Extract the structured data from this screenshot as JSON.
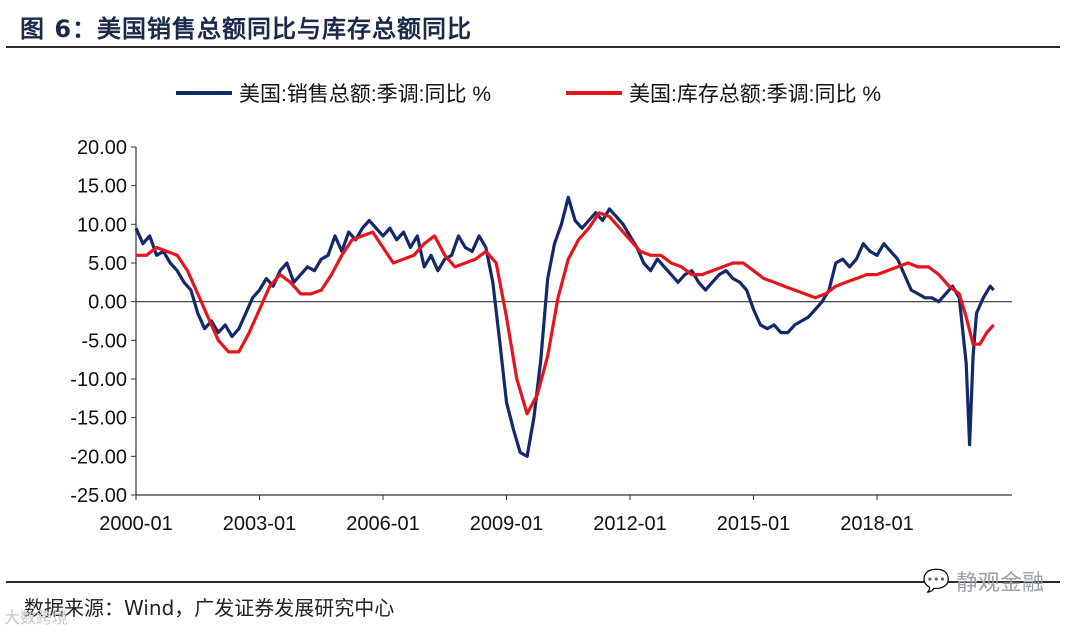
{
  "header": {
    "title": "图 6：美国销售总额同比与库存总额同比"
  },
  "footer": {
    "source": "数据来源：Wind，广发证券发展研究中心",
    "watermark": "静观金融",
    "watermark_left": "大数跨境"
  },
  "chart_data": {
    "type": "line",
    "title": "",
    "xlabel": "",
    "ylabel": "",
    "ylim": [
      -25,
      20
    ],
    "yticks": [
      "20.00",
      "15.00",
      "10.00",
      "5.00",
      "0.00",
      "-5.00",
      "-10.00",
      "-15.00",
      "-20.00",
      "-25.00"
    ],
    "ytick_values": [
      20,
      15,
      10,
      5,
      0,
      -5,
      -10,
      -15,
      -20,
      -25
    ],
    "xlim": [
      "2000-01",
      "2020-06"
    ],
    "xticks": [
      "2000-01",
      "2003-01",
      "2006-01",
      "2009-01",
      "2012-01",
      "2015-01",
      "2018-01"
    ],
    "grid": false,
    "legend": "top",
    "colors": {
      "sales": "#13296b",
      "inventory": "#e8141c"
    },
    "series": [
      {
        "name": "美国:销售总额:季调:同比 %",
        "color": "#13296b",
        "points": [
          [
            "2000-01",
            9.5
          ],
          [
            "2000-03",
            7.5
          ],
          [
            "2000-05",
            8.5
          ],
          [
            "2000-07",
            6.0
          ],
          [
            "2000-09",
            6.5
          ],
          [
            "2000-11",
            5.0
          ],
          [
            "2001-01",
            4.0
          ],
          [
            "2001-03",
            2.5
          ],
          [
            "2001-05",
            1.5
          ],
          [
            "2001-07",
            -1.5
          ],
          [
            "2001-09",
            -3.5
          ],
          [
            "2001-11",
            -2.5
          ],
          [
            "2002-01",
            -4.0
          ],
          [
            "2002-03",
            -3.0
          ],
          [
            "2002-05",
            -4.5
          ],
          [
            "2002-07",
            -3.5
          ],
          [
            "2002-09",
            -1.5
          ],
          [
            "2002-11",
            0.5
          ],
          [
            "2003-01",
            1.5
          ],
          [
            "2003-03",
            3.0
          ],
          [
            "2003-05",
            2.0
          ],
          [
            "2003-07",
            4.0
          ],
          [
            "2003-09",
            5.0
          ],
          [
            "2003-11",
            2.5
          ],
          [
            "2004-01",
            3.5
          ],
          [
            "2004-03",
            4.5
          ],
          [
            "2004-05",
            4.0
          ],
          [
            "2004-07",
            5.5
          ],
          [
            "2004-09",
            6.0
          ],
          [
            "2004-11",
            8.5
          ],
          [
            "2005-01",
            6.5
          ],
          [
            "2005-03",
            9.0
          ],
          [
            "2005-05",
            8.0
          ],
          [
            "2005-07",
            9.5
          ],
          [
            "2005-09",
            10.5
          ],
          [
            "2005-11",
            9.5
          ],
          [
            "2006-01",
            8.5
          ],
          [
            "2006-03",
            9.5
          ],
          [
            "2006-05",
            8.0
          ],
          [
            "2006-07",
            9.0
          ],
          [
            "2006-09",
            7.0
          ],
          [
            "2006-11",
            8.5
          ],
          [
            "2007-01",
            4.5
          ],
          [
            "2007-03",
            6.0
          ],
          [
            "2007-05",
            4.0
          ],
          [
            "2007-07",
            5.5
          ],
          [
            "2007-09",
            6.0
          ],
          [
            "2007-11",
            8.5
          ],
          [
            "2008-01",
            7.0
          ],
          [
            "2008-03",
            6.5
          ],
          [
            "2008-05",
            8.5
          ],
          [
            "2008-07",
            7.0
          ],
          [
            "2008-09",
            2.5
          ],
          [
            "2008-11",
            -5.0
          ],
          [
            "2009-01",
            -13.0
          ],
          [
            "2009-03",
            -16.5
          ],
          [
            "2009-05",
            -19.5
          ],
          [
            "2009-07",
            -20.0
          ],
          [
            "2009-09",
            -15.0
          ],
          [
            "2009-11",
            -7.5
          ],
          [
            "2010-01",
            3.0
          ],
          [
            "2010-03",
            7.5
          ],
          [
            "2010-05",
            10.0
          ],
          [
            "2010-07",
            13.5
          ],
          [
            "2010-09",
            10.5
          ],
          [
            "2010-11",
            9.5
          ],
          [
            "2011-01",
            10.5
          ],
          [
            "2011-03",
            11.5
          ],
          [
            "2011-05",
            10.5
          ],
          [
            "2011-07",
            12.0
          ],
          [
            "2011-09",
            11.0
          ],
          [
            "2011-11",
            10.0
          ],
          [
            "2012-01",
            8.5
          ],
          [
            "2012-03",
            7.0
          ],
          [
            "2012-05",
            5.0
          ],
          [
            "2012-07",
            4.0
          ],
          [
            "2012-09",
            5.5
          ],
          [
            "2012-11",
            4.5
          ],
          [
            "2013-01",
            3.5
          ],
          [
            "2013-03",
            2.5
          ],
          [
            "2013-05",
            3.5
          ],
          [
            "2013-07",
            4.0
          ],
          [
            "2013-09",
            2.5
          ],
          [
            "2013-11",
            1.5
          ],
          [
            "2014-01",
            2.5
          ],
          [
            "2014-03",
            3.5
          ],
          [
            "2014-05",
            4.0
          ],
          [
            "2014-07",
            3.0
          ],
          [
            "2014-09",
            2.5
          ],
          [
            "2014-11",
            1.5
          ],
          [
            "2015-01",
            -1.0
          ],
          [
            "2015-03",
            -3.0
          ],
          [
            "2015-05",
            -3.5
          ],
          [
            "2015-07",
            -3.0
          ],
          [
            "2015-09",
            -4.0
          ],
          [
            "2015-11",
            -4.0
          ],
          [
            "2016-01",
            -3.0
          ],
          [
            "2016-03",
            -2.5
          ],
          [
            "2016-05",
            -2.0
          ],
          [
            "2016-07",
            -1.0
          ],
          [
            "2016-09",
            0.0
          ],
          [
            "2016-11",
            1.5
          ],
          [
            "2017-01",
            5.0
          ],
          [
            "2017-03",
            5.5
          ],
          [
            "2017-05",
            4.5
          ],
          [
            "2017-07",
            5.5
          ],
          [
            "2017-09",
            7.5
          ],
          [
            "2017-11",
            6.5
          ],
          [
            "2018-01",
            6.0
          ],
          [
            "2018-03",
            7.5
          ],
          [
            "2018-05",
            6.5
          ],
          [
            "2018-07",
            5.5
          ],
          [
            "2018-09",
            3.5
          ],
          [
            "2018-11",
            1.5
          ],
          [
            "2019-01",
            1.0
          ],
          [
            "2019-03",
            0.5
          ],
          [
            "2019-05",
            0.5
          ],
          [
            "2019-07",
            0.0
          ],
          [
            "2019-09",
            1.0
          ],
          [
            "2019-11",
            2.0
          ],
          [
            "2020-01",
            0.5
          ],
          [
            "2020-03",
            -8.0
          ],
          [
            "2020-04",
            -18.5
          ],
          [
            "2020-05",
            -7.0
          ],
          [
            "2020-06",
            -1.5
          ],
          [
            "2020-08",
            0.5
          ],
          [
            "2020-10",
            2.0
          ],
          [
            "2020-11",
            1.5
          ]
        ]
      },
      {
        "name": "美国:库存总额:季调:同比 %",
        "color": "#e8141c",
        "points": [
          [
            "2000-01",
            6.0
          ],
          [
            "2000-04",
            6.0
          ],
          [
            "2000-07",
            7.0
          ],
          [
            "2000-10",
            6.5
          ],
          [
            "2001-01",
            6.0
          ],
          [
            "2001-04",
            4.0
          ],
          [
            "2001-07",
            1.0
          ],
          [
            "2001-10",
            -2.0
          ],
          [
            "2002-01",
            -5.0
          ],
          [
            "2002-04",
            -6.5
          ],
          [
            "2002-07",
            -6.5
          ],
          [
            "2002-10",
            -4.0
          ],
          [
            "2003-01",
            -1.0
          ],
          [
            "2003-04",
            2.0
          ],
          [
            "2003-07",
            3.5
          ],
          [
            "2003-10",
            2.5
          ],
          [
            "2004-01",
            1.0
          ],
          [
            "2004-04",
            1.0
          ],
          [
            "2004-07",
            1.5
          ],
          [
            "2004-10",
            3.5
          ],
          [
            "2005-01",
            6.0
          ],
          [
            "2005-04",
            8.0
          ],
          [
            "2005-07",
            8.5
          ],
          [
            "2005-10",
            9.0
          ],
          [
            "2006-01",
            7.0
          ],
          [
            "2006-04",
            5.0
          ],
          [
            "2006-07",
            5.5
          ],
          [
            "2006-10",
            6.0
          ],
          [
            "2007-01",
            7.5
          ],
          [
            "2007-04",
            8.5
          ],
          [
            "2007-07",
            6.0
          ],
          [
            "2007-10",
            4.5
          ],
          [
            "2008-01",
            5.0
          ],
          [
            "2008-04",
            5.5
          ],
          [
            "2008-07",
            6.5
          ],
          [
            "2008-10",
            5.0
          ],
          [
            "2009-01",
            -2.0
          ],
          [
            "2009-04",
            -10.0
          ],
          [
            "2009-07",
            -14.5
          ],
          [
            "2009-10",
            -12.0
          ],
          [
            "2010-01",
            -7.0
          ],
          [
            "2010-04",
            0.5
          ],
          [
            "2010-07",
            5.5
          ],
          [
            "2010-10",
            8.0
          ],
          [
            "2011-01",
            9.5
          ],
          [
            "2011-04",
            11.5
          ],
          [
            "2011-07",
            11.0
          ],
          [
            "2011-10",
            9.5
          ],
          [
            "2012-01",
            8.0
          ],
          [
            "2012-04",
            6.5
          ],
          [
            "2012-07",
            6.0
          ],
          [
            "2012-10",
            6.0
          ],
          [
            "2013-01",
            5.0
          ],
          [
            "2013-04",
            4.5
          ],
          [
            "2013-07",
            3.5
          ],
          [
            "2013-10",
            3.5
          ],
          [
            "2014-01",
            4.0
          ],
          [
            "2014-04",
            4.5
          ],
          [
            "2014-07",
            5.0
          ],
          [
            "2014-10",
            5.0
          ],
          [
            "2015-01",
            4.0
          ],
          [
            "2015-04",
            3.0
          ],
          [
            "2015-07",
            2.5
          ],
          [
            "2015-10",
            2.0
          ],
          [
            "2016-01",
            1.5
          ],
          [
            "2016-04",
            1.0
          ],
          [
            "2016-07",
            0.5
          ],
          [
            "2016-10",
            1.0
          ],
          [
            "2017-01",
            2.0
          ],
          [
            "2017-04",
            2.5
          ],
          [
            "2017-07",
            3.0
          ],
          [
            "2017-10",
            3.5
          ],
          [
            "2018-01",
            3.5
          ],
          [
            "2018-04",
            4.0
          ],
          [
            "2018-07",
            4.5
          ],
          [
            "2018-10",
            5.0
          ],
          [
            "2019-01",
            4.5
          ],
          [
            "2019-04",
            4.5
          ],
          [
            "2019-07",
            3.5
          ],
          [
            "2019-10",
            2.0
          ],
          [
            "2020-01",
            1.0
          ],
          [
            "2020-03",
            -2.0
          ],
          [
            "2020-05",
            -5.5
          ],
          [
            "2020-07",
            -5.5
          ],
          [
            "2020-09",
            -4.0
          ],
          [
            "2020-11",
            -3.0
          ]
        ]
      }
    ]
  }
}
